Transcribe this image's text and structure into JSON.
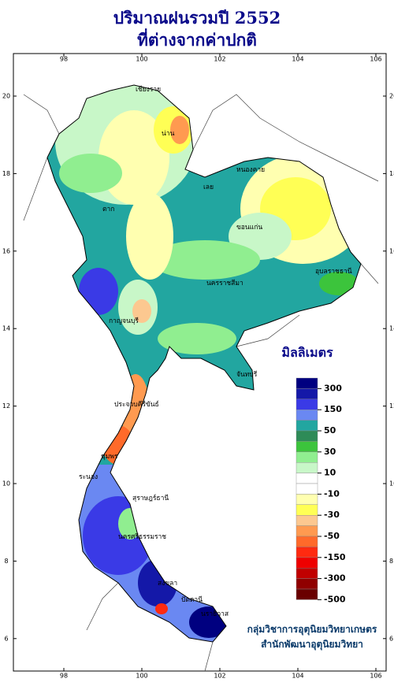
{
  "title": [
    "ปริมาณฝนรวมปี 2552",
    "ที่ต่างจากค่าปกติ"
  ],
  "map": {
    "xticks": [
      98,
      100,
      102,
      104,
      106
    ],
    "yticks": [
      20,
      18,
      16,
      14,
      12,
      10,
      8,
      6
    ],
    "places": [
      "เชียงราย",
      "น่าน",
      "เลย",
      "หนองคาย",
      "ขอนแก่น",
      "นครราชสีมา",
      "อุบลราชธานี",
      "ตาก",
      "กาญจนบุรี",
      "ประจวบคีรีขันธ์",
      "ชุมพร",
      "ระนอง",
      "สุราษฎร์ธานี",
      "นครศรีธรรมราช",
      "สงขลา",
      "ปัตตานี",
      "นราธิวาส",
      "จันทบุรี"
    ]
  },
  "legend": {
    "unit": "มิลลิเมตร",
    "levels": [
      300,
      150,
      50,
      30,
      10,
      -10,
      -30,
      -50,
      -150,
      -300,
      -500
    ],
    "colors": [
      "#000080",
      "#1418a8",
      "#3a3ae6",
      "#6a88f2",
      "#22a6a0",
      "#2e8b57",
      "#3cc43c",
      "#90ee90",
      "#c8f7c8",
      "#ffffff",
      "#ffffff",
      "#ffffb0",
      "#ffff55",
      "#fcc890",
      "#ff9a50",
      "#ff6a2a",
      "#ff2a10",
      "#ee0000",
      "#c00000",
      "#900000",
      "#6a0000"
    ]
  },
  "credits": [
    "กลุ่มวิชาการอุตุนิยมวิทยาเกษตร",
    "สำนักพัฒนาอุตุนิยมวิทยา"
  ]
}
